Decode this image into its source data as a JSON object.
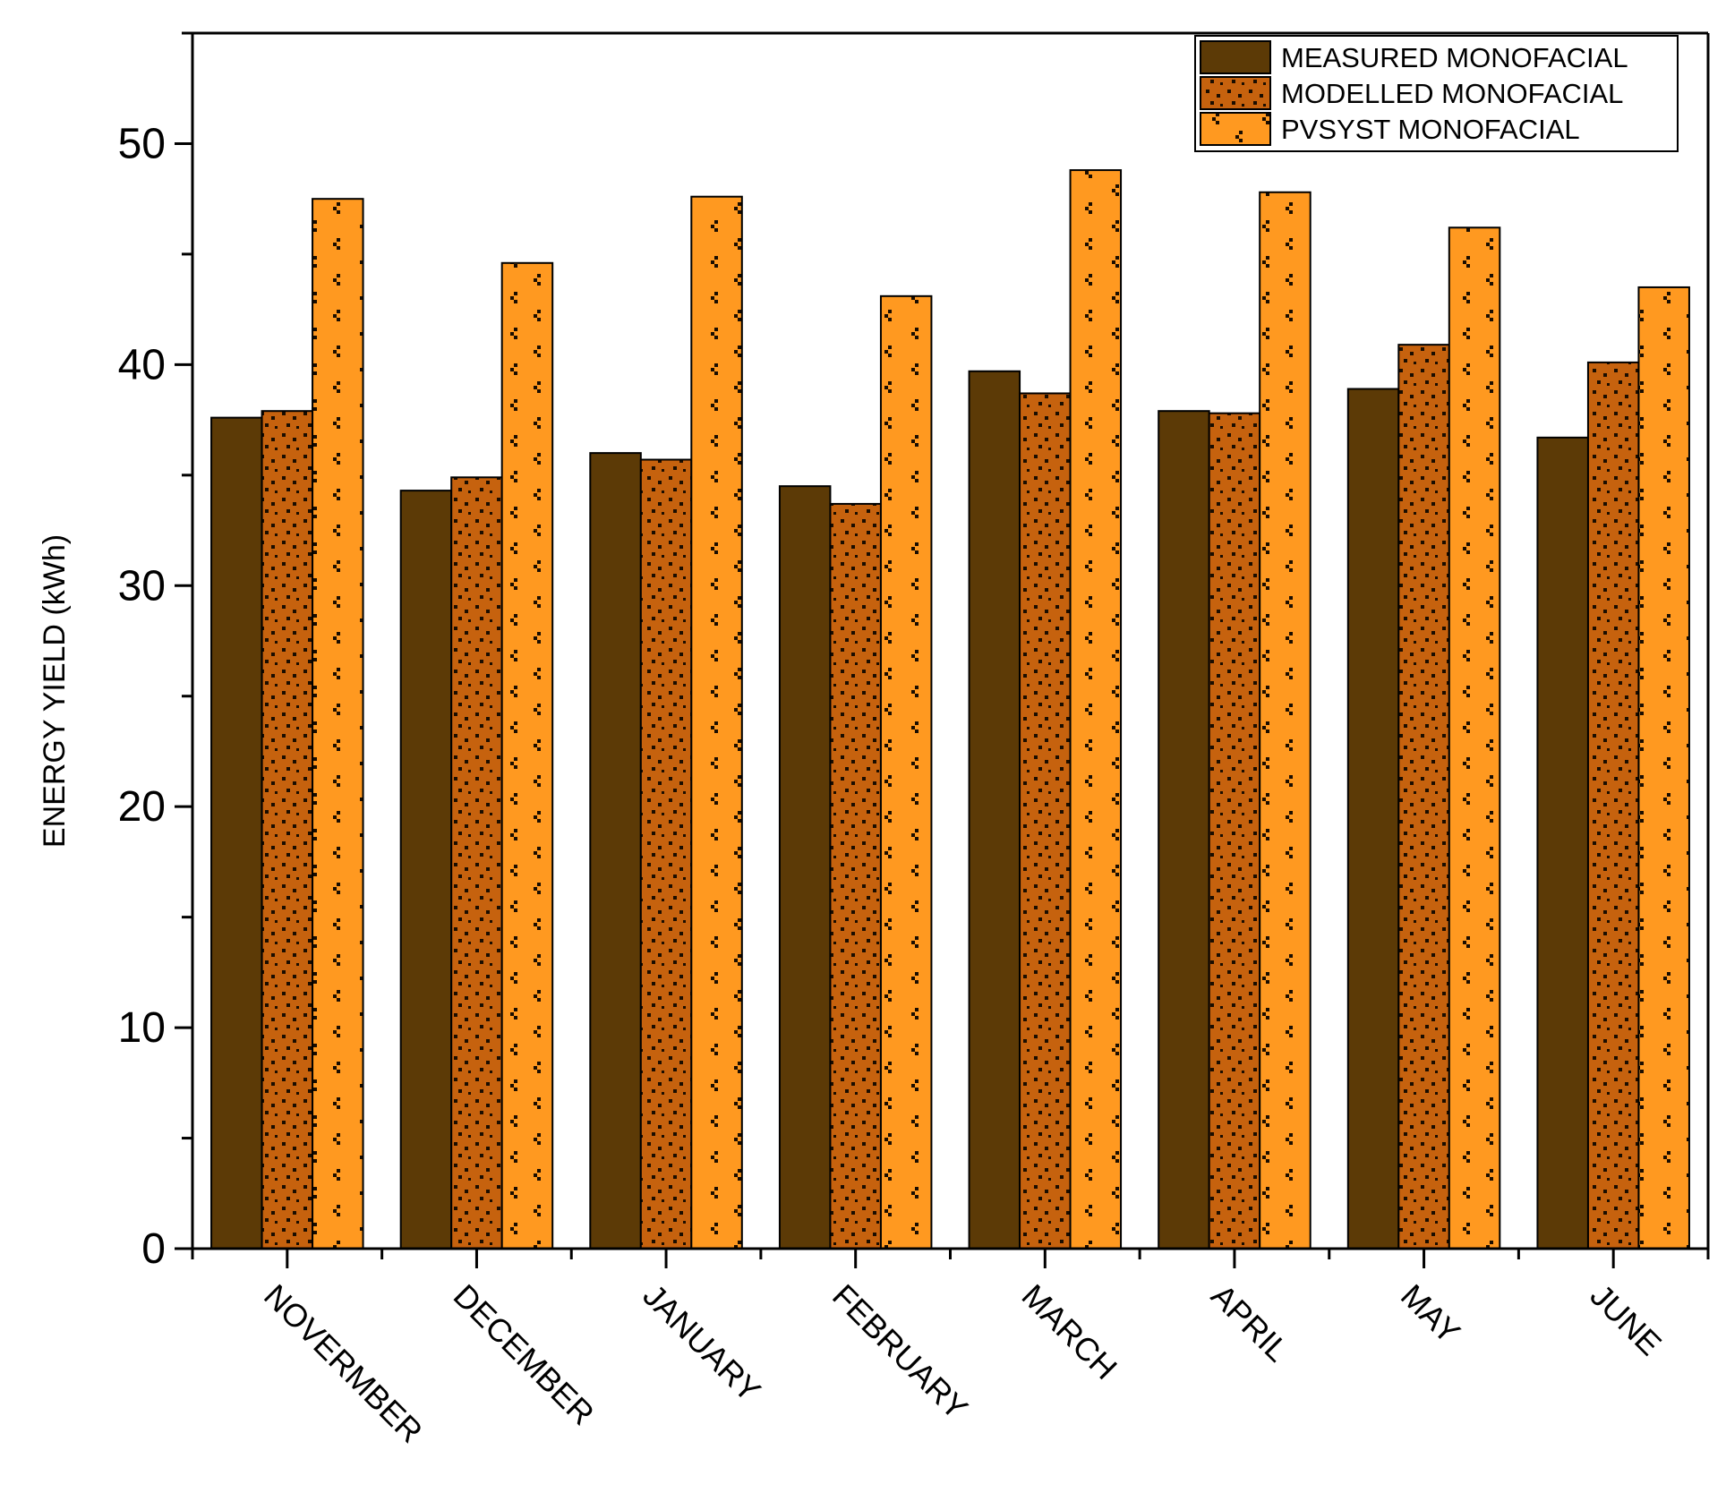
{
  "chart_data": {
    "type": "bar",
    "title": "",
    "xlabel": "",
    "ylabel": "ENERGY YIELD (kWh)",
    "ylim": [
      0,
      55
    ],
    "yticks": [
      0,
      10,
      20,
      30,
      40,
      50
    ],
    "grid": false,
    "legend_position": "top-right",
    "categories": [
      "NOVERMBER",
      "DECEMBER",
      "JANUARY",
      "FEBRUARY",
      "MARCH",
      "APRIL",
      "MAY",
      "JUNE"
    ],
    "series": [
      {
        "name": "MEASURED MONOFACIAL",
        "color": "#5c3a06",
        "pattern": "none",
        "values": [
          37.6,
          34.3,
          36.0,
          34.5,
          39.7,
          37.9,
          38.9,
          36.7
        ]
      },
      {
        "name": "MODELLED MONOFACIAL",
        "color": "#c6620e",
        "pattern": "dots",
        "values": [
          37.9,
          34.9,
          35.7,
          33.7,
          38.7,
          37.8,
          40.9,
          40.1
        ]
      },
      {
        "name": "PVSYST MONOFACIAL",
        "color": "#ff9920",
        "pattern": "dots",
        "values": [
          47.5,
          44.6,
          47.6,
          43.1,
          48.8,
          47.8,
          46.2,
          43.5
        ]
      }
    ]
  }
}
